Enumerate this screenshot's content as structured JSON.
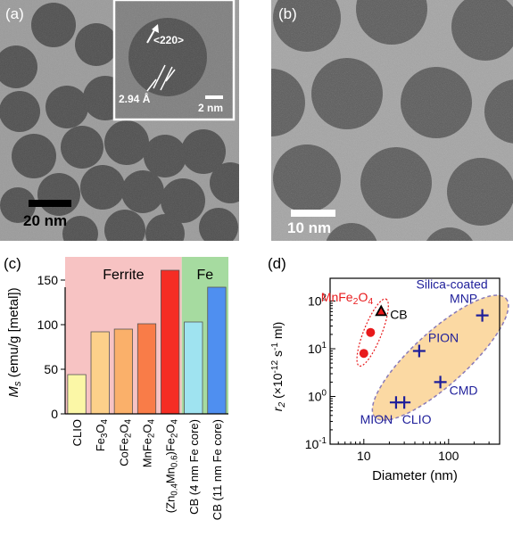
{
  "panel_a": {
    "label": "(a)",
    "scalebar": "20 nm",
    "inset": {
      "direction": "<220>",
      "spacing": "2.94 Å",
      "scalebar": "2 nm"
    }
  },
  "panel_b": {
    "label": "(b)",
    "scalebar": "10 nm"
  },
  "panel_c": {
    "label": "(c)"
  },
  "panel_d": {
    "label": "(d)"
  },
  "chart_data": [
    {
      "type": "bar",
      "ylabel": "Ms (emu/g [metal])",
      "ylim": [
        0,
        180
      ],
      "yticks": [
        0,
        50,
        100,
        150
      ],
      "groups": [
        {
          "name": "Ferrite",
          "color": "#f7c3c3"
        },
        {
          "name": "Fe",
          "color": "#a6dba0"
        }
      ],
      "categories": [
        "CLIO",
        "Fe3O4",
        "CoFe2O4",
        "MnFe2O4",
        "(Zn0.4Mn0.6)Fe2O4",
        "CB (4 nm Fe core)",
        "CB (11 nm Fe core)"
      ],
      "values": [
        44,
        92,
        95,
        101,
        161,
        103,
        142
      ],
      "colors": [
        "#fbf7a6",
        "#fcd08a",
        "#fab06a",
        "#f97c48",
        "#f52d24",
        "#9fe3f0",
        "#4f8ff0"
      ]
    },
    {
      "type": "scatter",
      "xlabel": "Diameter (nm)",
      "ylabel": "r2 (×10-12 s-1 ml)",
      "xscale": "log",
      "yscale": "log",
      "xlim": [
        4,
        400
      ],
      "ylim": [
        0.1,
        300
      ],
      "xticks": [
        "10",
        "100"
      ],
      "yticks": [
        "10-1",
        "100",
        "101",
        "102"
      ],
      "groups": [
        {
          "name": "MnFe2O4",
          "color": "#e8191b",
          "marker": "dot",
          "points": [
            {
              "x": 10,
              "y": 8
            },
            {
              "x": 12,
              "y": 22
            }
          ]
        },
        {
          "name": "CB",
          "color": "#000000",
          "marker": "triangle",
          "points": [
            {
              "x": 16,
              "y": 60
            }
          ]
        },
        {
          "name": "Silica-coated MNP",
          "color": "#1e1e9a",
          "marker": "plus",
          "points": [
            {
              "x": 250,
              "y": 50
            }
          ]
        },
        {
          "name": "PION",
          "color": "#1e1e9a",
          "marker": "plus",
          "points": [
            {
              "x": 45,
              "y": 9
            }
          ]
        },
        {
          "name": "CMD",
          "color": "#1e1e9a",
          "marker": "plus",
          "points": [
            {
              "x": 80,
              "y": 2
            }
          ]
        },
        {
          "name": "MION",
          "color": "#1e1e9a",
          "marker": "plus",
          "points": [
            {
              "x": 24,
              "y": 0.75
            }
          ]
        },
        {
          "name": "CLIO",
          "color": "#1e1e9a",
          "marker": "plus",
          "points": [
            {
              "x": 30,
              "y": 0.75
            }
          ]
        }
      ]
    }
  ]
}
